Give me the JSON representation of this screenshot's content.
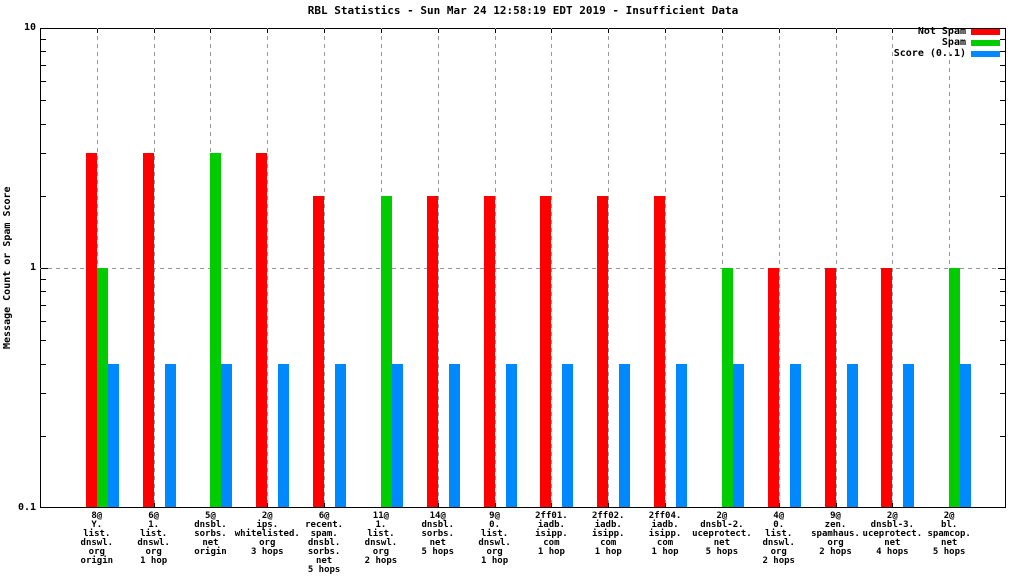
{
  "chart_data": {
    "type": "bar",
    "title": "RBL Statistics - Sun Mar 24 12:58:19 EDT 2019 - Insufficient Data",
    "ylabel": "Message Count or Spam Score",
    "xlabel": "",
    "y_scale": "log",
    "ylim": [
      0.1,
      10
    ],
    "yticks": [
      10,
      1,
      0.1
    ],
    "grid": true,
    "legend_position": "top-right",
    "series": [
      {
        "key": "not_spam",
        "name": "Not Spam",
        "color": "#ff0000"
      },
      {
        "key": "spam",
        "name": "Spam",
        "color": "#00cc00"
      },
      {
        "key": "score",
        "name": "Score (0..1)",
        "color": "#0088ff"
      }
    ],
    "groups": [
      {
        "label_lines": [
          "8@",
          "Y.",
          "list.",
          "dnswl.",
          "org",
          "origin"
        ],
        "values": [
          3,
          1,
          0.4
        ]
      },
      {
        "label_lines": [
          "6@",
          "1.",
          "list.",
          "dnswl.",
          "org",
          "1 hop"
        ],
        "values": [
          3,
          null,
          0.4
        ]
      },
      {
        "label_lines": [
          "5@",
          "dnsbl.",
          "sorbs.",
          "net",
          "origin"
        ],
        "values": [
          null,
          3,
          0.4
        ]
      },
      {
        "label_lines": [
          "2@",
          "ips.",
          "whitelisted.",
          "org",
          "3 hops"
        ],
        "values": [
          3,
          null,
          0.4
        ]
      },
      {
        "label_lines": [
          "6@",
          "recent.",
          "spam.",
          "dnsbl.",
          "sorbs.",
          "net",
          "5 hops"
        ],
        "values": [
          2,
          null,
          0.4
        ]
      },
      {
        "label_lines": [
          "11@",
          "1.",
          "list.",
          "dnswl.",
          "org",
          "2 hops"
        ],
        "values": [
          null,
          2,
          0.4
        ]
      },
      {
        "label_lines": [
          "14@",
          "dnsbl.",
          "sorbs.",
          "net",
          "5 hops"
        ],
        "values": [
          2,
          null,
          0.4
        ]
      },
      {
        "label_lines": [
          "9@",
          "0.",
          "list.",
          "dnswl.",
          "org",
          "1 hop"
        ],
        "values": [
          2,
          null,
          0.4
        ]
      },
      {
        "label_lines": [
          "2ff01.",
          "iadb.",
          "isipp.",
          "com",
          "1 hop"
        ],
        "values": [
          2,
          null,
          0.4
        ]
      },
      {
        "label_lines": [
          "2ff02.",
          "iadb.",
          "isipp.",
          "com",
          "1 hop"
        ],
        "values": [
          2,
          null,
          0.4
        ]
      },
      {
        "label_lines": [
          "2ff04.",
          "iadb.",
          "isipp.",
          "com",
          "1 hop"
        ],
        "values": [
          2,
          null,
          0.4
        ]
      },
      {
        "label_lines": [
          "2@",
          "dnsbl-2.",
          "uceprotect.",
          "net",
          "5 hops"
        ],
        "values": [
          null,
          1,
          0.4
        ]
      },
      {
        "label_lines": [
          "4@",
          "0.",
          "list.",
          "dnswl.",
          "org",
          "2 hops"
        ],
        "values": [
          1,
          null,
          0.4
        ]
      },
      {
        "label_lines": [
          "9@",
          "zen.",
          "spamhaus.",
          "org",
          "2 hops"
        ],
        "values": [
          1,
          null,
          0.4
        ]
      },
      {
        "label_lines": [
          "2@",
          "dnsbl-3.",
          "uceprotect.",
          "net",
          "4 hops"
        ],
        "values": [
          1,
          null,
          0.4
        ]
      },
      {
        "label_lines": [
          "2@",
          "bl.",
          "spamcop.",
          "net",
          "5 hops"
        ],
        "values": [
          null,
          1,
          0.4
        ]
      }
    ]
  }
}
